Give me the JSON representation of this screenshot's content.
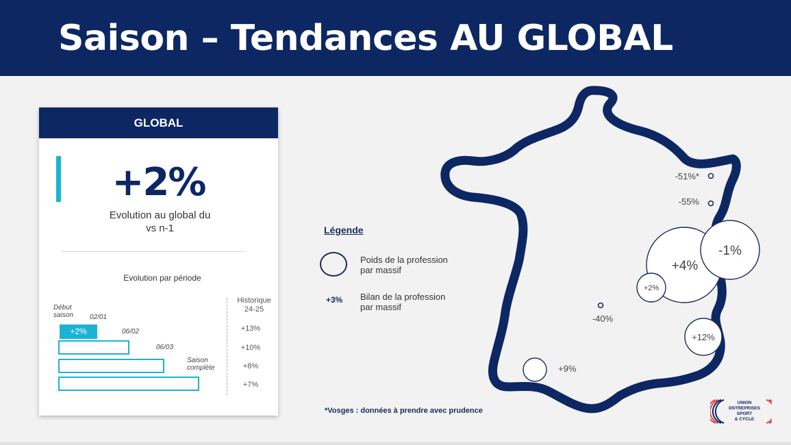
{
  "title": "Saison – Tendances AU GLOBAL",
  "card": {
    "header": "GLOBAL",
    "big_value": "+2%",
    "subtitle_line1": "Evolution au global du",
    "subtitle_line2": "vs n-1",
    "period_title": "Evolution par période",
    "historique_line1": "Historique",
    "historique_line2": "24-25",
    "debut_line1": "Début",
    "debut_line2": "saison",
    "saison_line1": "Saison",
    "saison_line2": "complète",
    "bars": [
      {
        "date": "02/01",
        "value": "+2%",
        "historique": "+13%"
      },
      {
        "date": "06/02",
        "value": "",
        "historique": "+10%"
      },
      {
        "date": "06/03",
        "value": "",
        "historique": "+8%"
      },
      {
        "date": "",
        "value": "",
        "historique": "+7%"
      }
    ]
  },
  "legend": {
    "title": "Légende",
    "circle_line1": "Poids de la profession",
    "circle_line2": "par massif",
    "value_sample": "+3%",
    "value_line1": "Bilan de la profession",
    "value_line2": "par massif"
  },
  "map": {
    "massifs": [
      {
        "label": "-51%*"
      },
      {
        "label": "-55%"
      },
      {
        "label": "-1%"
      },
      {
        "label": "+4%"
      },
      {
        "label": "+2%"
      },
      {
        "label": "-40%"
      },
      {
        "label": "+12%"
      },
      {
        "label": "+9%"
      }
    ]
  },
  "footnote": "*Vosges : données à prendre avec prudence",
  "logo": {
    "line1": "UNION",
    "line2": "ENTREPRISES",
    "line3": "SPORT",
    "line4": "& CYCLE"
  },
  "colors": {
    "navy": "#0d2763",
    "accent": "#1bb3d3"
  }
}
